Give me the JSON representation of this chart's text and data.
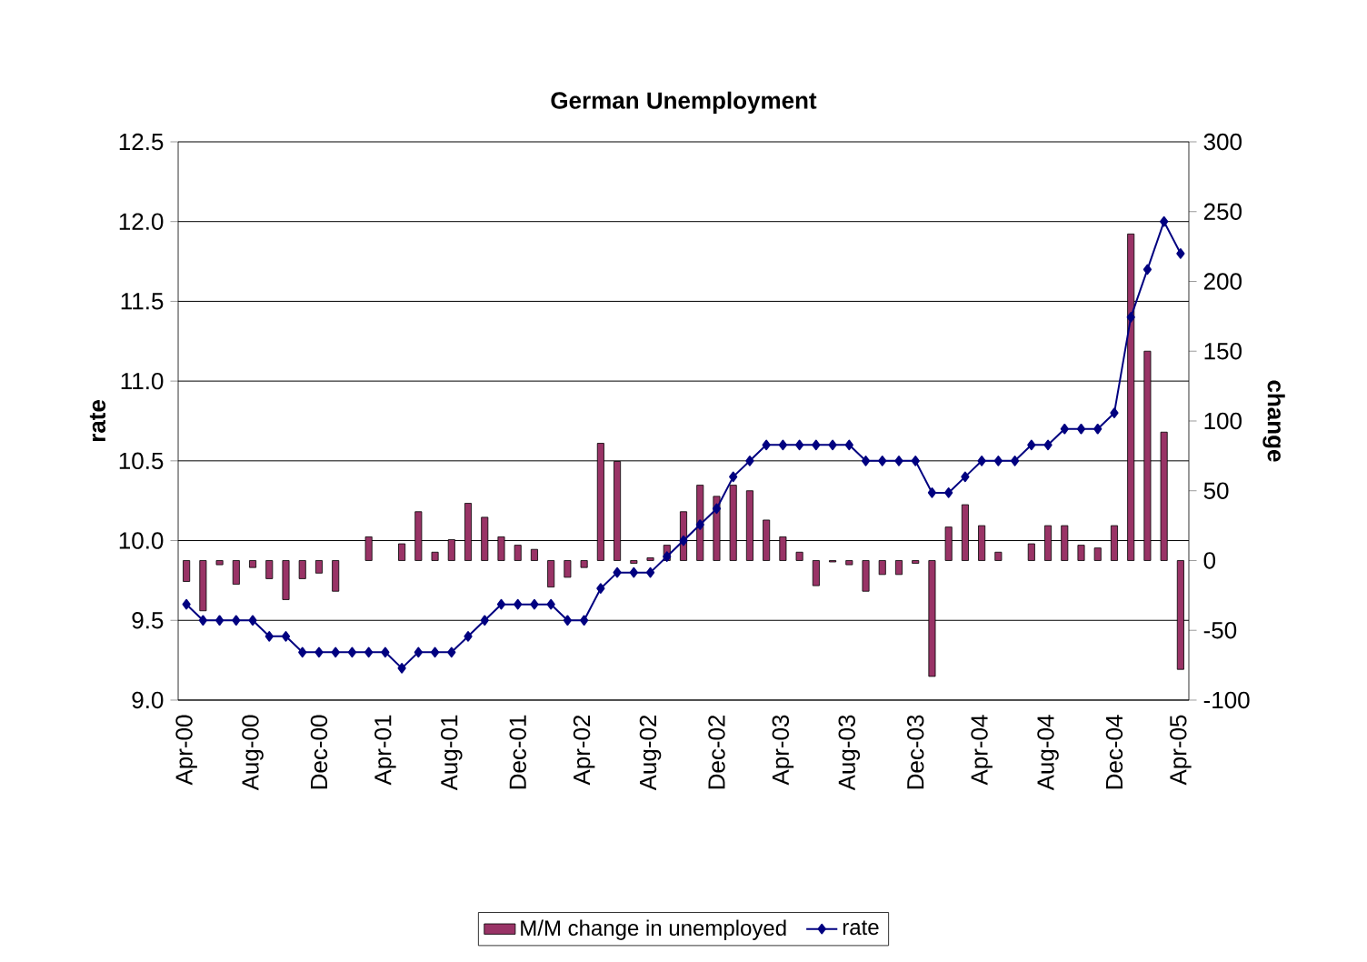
{
  "chart_data": {
    "type": "bar",
    "title": "German Unemployment",
    "ylabel": "rate",
    "y2label": "change",
    "categories": [
      "Apr-00",
      null,
      null,
      null,
      "Aug-00",
      null,
      null,
      null,
      "Dec-00",
      null,
      null,
      null,
      "Apr-01",
      null,
      null,
      null,
      "Aug-01",
      null,
      null,
      null,
      "Dec-01",
      null,
      null,
      null,
      "Apr-02",
      null,
      null,
      null,
      "Aug-02",
      null,
      null,
      null,
      "Dec-02",
      null,
      null,
      null,
      "Apr-03",
      null,
      null,
      null,
      "Aug-03",
      null,
      null,
      null,
      "Dec-03",
      null,
      null,
      null,
      "Apr-04",
      null,
      null,
      null,
      "Aug-04",
      null,
      null,
      null,
      "Dec-04",
      null,
      null,
      null,
      "Apr-05"
    ],
    "ylim": [
      9.0,
      12.5
    ],
    "yticks": [
      {
        "value": 9,
        "label": "9.0"
      },
      9.5,
      {
        "value": 10,
        "label": "10.0"
      },
      10.5,
      {
        "value": 11,
        "label": "11.0"
      },
      11.5,
      {
        "value": 12,
        "label": "12.0"
      },
      12.5
    ],
    "y2lim": [
      -100,
      300
    ],
    "y2ticks": [
      -100,
      -50,
      0,
      50,
      100,
      150,
      200,
      250,
      300
    ],
    "grid": "y",
    "legend": "bottom",
    "series": [
      {
        "name": "M/M change in unemployed",
        "axis": "y2",
        "color": "#993366",
        "values": [
          -15,
          -36,
          -3,
          -17,
          -5,
          -13,
          -28,
          -13,
          -9,
          -22,
          null,
          17,
          null,
          12,
          35,
          6,
          15,
          41,
          31,
          17,
          11,
          8,
          -19,
          -12,
          -5,
          84,
          71,
          -2,
          2,
          11,
          35,
          54,
          46,
          54,
          50,
          29,
          17,
          6,
          -18,
          -1,
          -3,
          -22,
          -10,
          -10,
          -2,
          -83,
          24,
          40,
          25,
          6,
          null,
          12,
          25,
          25,
          11,
          9,
          25,
          234,
          150,
          92,
          -78
        ]
      },
      {
        "name": "rate",
        "type": "line",
        "axis": "y",
        "color": "#000080",
        "marker": "diamond",
        "values": [
          9.6,
          9.5,
          9.5,
          9.5,
          9.5,
          9.4,
          9.4,
          9.3,
          9.3,
          9.3,
          9.3,
          9.3,
          9.3,
          9.2,
          9.3,
          9.3,
          9.3,
          9.4,
          9.5,
          9.6,
          9.6,
          9.6,
          9.6,
          9.5,
          9.5,
          9.7,
          9.8,
          9.8,
          9.8,
          9.9,
          10.0,
          10.1,
          10.2,
          10.4,
          10.5,
          10.6,
          10.6,
          10.6,
          10.6,
          10.6,
          10.6,
          10.5,
          10.5,
          10.5,
          10.5,
          10.3,
          10.3,
          10.4,
          10.5,
          10.5,
          10.5,
          10.6,
          10.6,
          10.7,
          10.7,
          10.7,
          10.8,
          11.4,
          11.7,
          12.0,
          11.8
        ]
      }
    ]
  }
}
